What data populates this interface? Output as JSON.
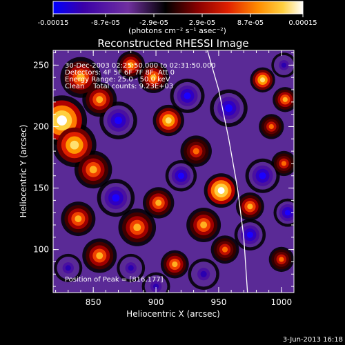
{
  "chart_data": {
    "type": "heatmap",
    "title": "Reconstructed RHESSI Image",
    "xlabel": "Heliocentric X (arcsec)",
    "ylabel": "Heliocentric Y (arcsec)",
    "xlim": [
      818,
      1010
    ],
    "ylim": [
      65,
      262
    ],
    "x_ticks": [
      850,
      900,
      950,
      1000
    ],
    "y_ticks": [
      100,
      150,
      200,
      250
    ],
    "colorbar": {
      "min": -0.00015,
      "max": 0.00015,
      "tick_values": [
        -0.00015,
        -8.7e-05,
        -2.9e-05,
        2.9e-05,
        8.7e-05,
        0.00015
      ],
      "tick_labels": [
        "-0.00015",
        "-8.7e-05",
        "-2.9e-05",
        "2.9e-05",
        "8.7e-05",
        "0.00015"
      ],
      "units": "(photons cm⁻² s⁻¹ asec⁻²)",
      "colors": [
        "#0000ff",
        "#3a00a8",
        "#7030a0",
        "#000000",
        "#8a0000",
        "#e02000",
        "#ff8c00",
        "#ffd040",
        "#ffffff"
      ]
    },
    "annotations": {
      "line1": "30-Dec-2003 02:25:50.000 to 02:31:50.000",
      "line2": "Detectors: 4F 5F 6F 7F 8F, Att 0",
      "line3": "Energy Range: 25.0 - 50.0 keV",
      "line4": "Clean    Total counts: 9.23E+03",
      "peak": "Position of Peak = [816,177]"
    },
    "footer_date": "3-Jun-2013 16:18",
    "limb": [
      [
        941,
        262
      ],
      [
        950,
        230
      ],
      [
        958,
        190
      ],
      [
        965,
        150
      ],
      [
        970,
        110
      ],
      [
        973,
        65
      ]
    ],
    "blobs": [
      {
        "x": 825,
        "y": 205,
        "v": 1.0,
        "r": 16
      },
      {
        "x": 835,
        "y": 185,
        "v": 0.75,
        "r": 14
      },
      {
        "x": 840,
        "y": 240,
        "v": 0.6,
        "r": 13
      },
      {
        "x": 855,
        "y": 222,
        "v": 0.55,
        "r": 11
      },
      {
        "x": 850,
        "y": 165,
        "v": 0.55,
        "r": 12
      },
      {
        "x": 838,
        "y": 125,
        "v": 0.5,
        "r": 11
      },
      {
        "x": 855,
        "y": 95,
        "v": 0.55,
        "r": 11
      },
      {
        "x": 885,
        "y": 118,
        "v": 0.6,
        "r": 12
      },
      {
        "x": 902,
        "y": 138,
        "v": 0.6,
        "r": 10
      },
      {
        "x": 910,
        "y": 205,
        "v": 0.75,
        "r": 10
      },
      {
        "x": 898,
        "y": 240,
        "v": 0.5,
        "r": 10
      },
      {
        "x": 880,
        "y": 250,
        "v": 0.5,
        "r": 9
      },
      {
        "x": 932,
        "y": 180,
        "v": 0.45,
        "r": 10
      },
      {
        "x": 938,
        "y": 120,
        "v": 0.55,
        "r": 11
      },
      {
        "x": 952,
        "y": 148,
        "v": 0.9,
        "r": 11
      },
      {
        "x": 955,
        "y": 100,
        "v": 0.45,
        "r": 9
      },
      {
        "x": 985,
        "y": 238,
        "v": 0.7,
        "r": 8
      },
      {
        "x": 1003,
        "y": 222,
        "v": 0.55,
        "r": 8
      },
      {
        "x": 992,
        "y": 200,
        "v": 0.45,
        "r": 8
      },
      {
        "x": 975,
        "y": 135,
        "v": 0.5,
        "r": 9
      },
      {
        "x": 1002,
        "y": 170,
        "v": 0.45,
        "r": 8
      },
      {
        "x": 1000,
        "y": 92,
        "v": 0.4,
        "r": 8
      },
      {
        "x": 915,
        "y": 88,
        "v": 0.5,
        "r": 9
      },
      {
        "x": 868,
        "y": 142,
        "v": -0.7,
        "r": 12
      },
      {
        "x": 870,
        "y": 205,
        "v": -0.6,
        "r": 12
      },
      {
        "x": 925,
        "y": 225,
        "v": -0.6,
        "r": 11
      },
      {
        "x": 958,
        "y": 215,
        "v": -0.6,
        "r": 12
      },
      {
        "x": 985,
        "y": 160,
        "v": -0.55,
        "r": 11
      },
      {
        "x": 975,
        "y": 112,
        "v": -0.5,
        "r": 10
      },
      {
        "x": 920,
        "y": 160,
        "v": -0.55,
        "r": 10
      },
      {
        "x": 938,
        "y": 80,
        "v": -0.45,
        "r": 10
      },
      {
        "x": 880,
        "y": 85,
        "v": -0.4,
        "r": 9
      },
      {
        "x": 1005,
        "y": 130,
        "v": -0.5,
        "r": 9
      },
      {
        "x": 1002,
        "y": 250,
        "v": -0.4,
        "r": 8
      },
      {
        "x": 830,
        "y": 85,
        "v": -0.35,
        "r": 9
      },
      {
        "x": 900,
        "y": 70,
        "v": -0.35,
        "r": 9
      }
    ]
  }
}
